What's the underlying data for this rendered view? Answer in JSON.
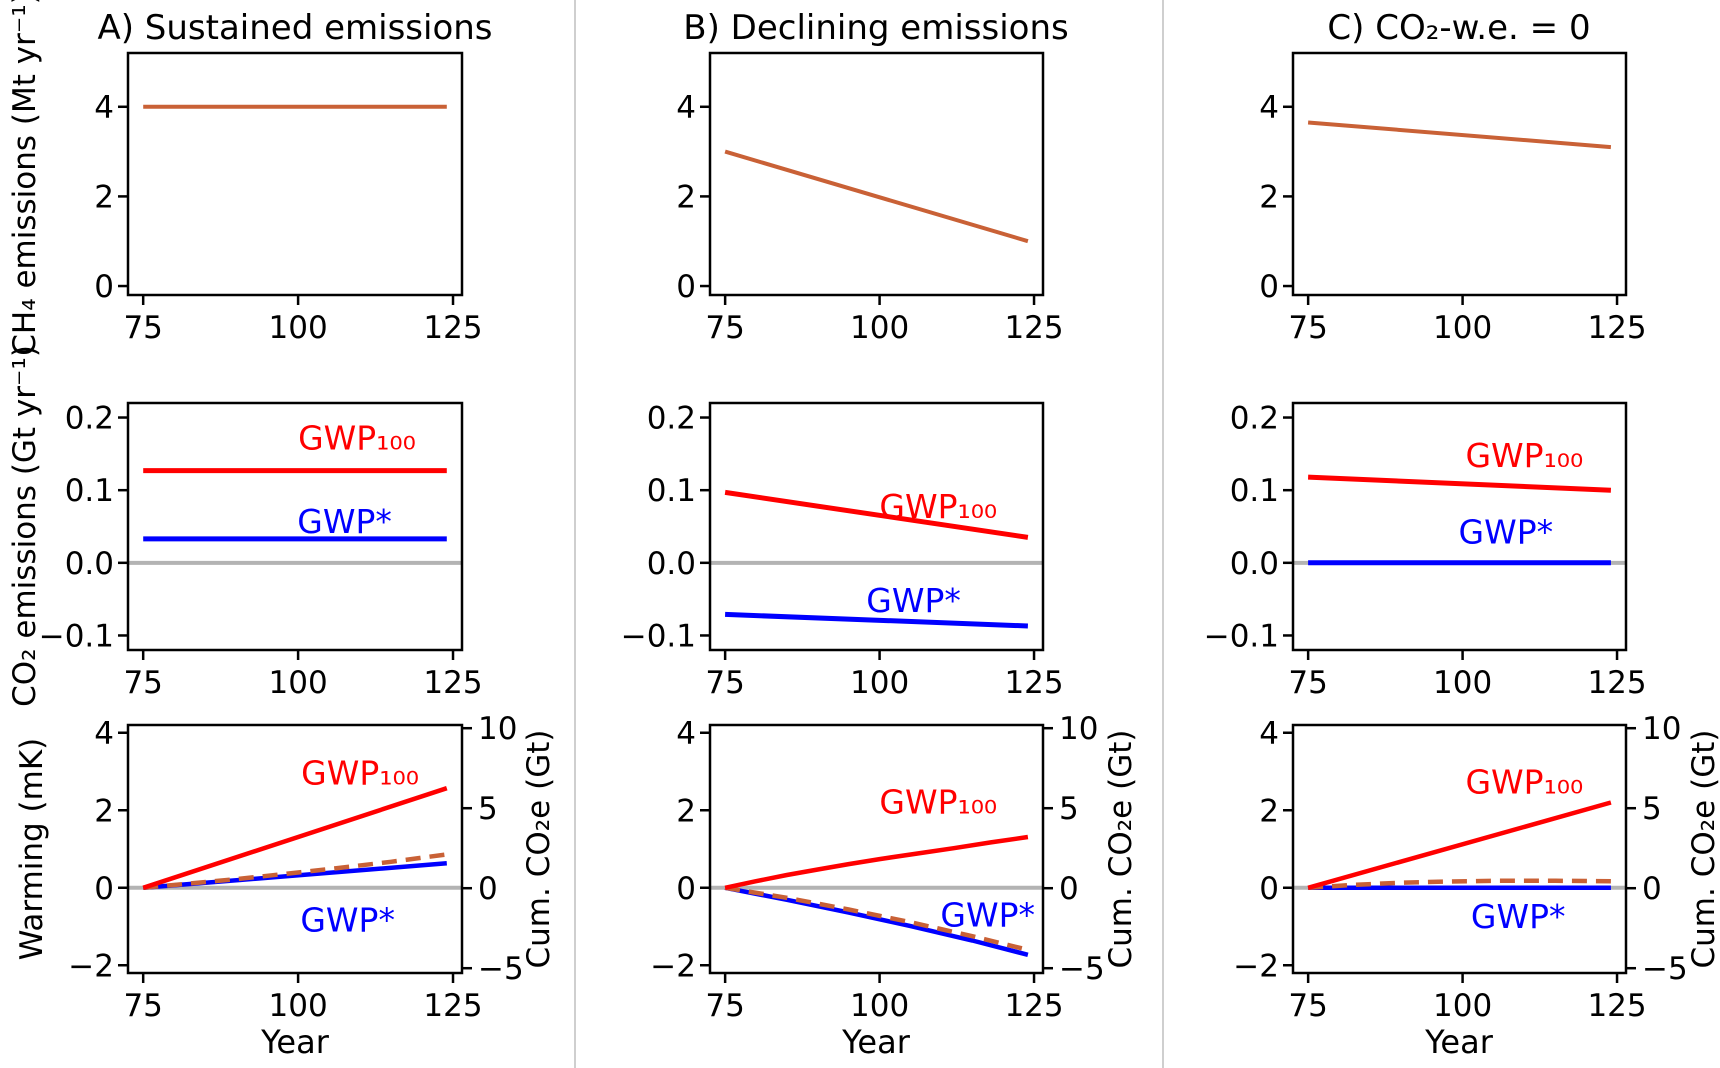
{
  "figure": {
    "background": "#ffffff",
    "divider_color": "#cfcfcf",
    "text_color": "#000000",
    "colors": {
      "methane_line": "#c96136",
      "gwp100_line": "#ff0000",
      "gwp_star_line": "#0000ff",
      "dashed_reference_line": "#c96136",
      "zero_line": "#b3b3b3"
    }
  },
  "columns": [
    {
      "id": "A",
      "title": "A) Sustained emissions"
    },
    {
      "id": "B",
      "title": "B) Declining emissions"
    },
    {
      "id": "C",
      "title": "C) CO₂-w.e. = 0"
    }
  ],
  "axes": {
    "xlabel": "Year",
    "xlim": [
      72.55,
      126.45
    ],
    "xticks": [
      {
        "v": 75,
        "label": "75"
      },
      {
        "v": 100,
        "label": "100"
      },
      {
        "v": 125,
        "label": "125"
      }
    ],
    "rows": [
      {
        "id": "ch4-emissions",
        "ylabel": "CH₄ emissions (Mt yr⁻¹)",
        "ylim": [
          -0.2,
          5.2
        ],
        "zero_line": false,
        "yticks": [
          {
            "v": 0,
            "label": "0"
          },
          {
            "v": 2,
            "label": "2"
          },
          {
            "v": 4,
            "label": "4"
          }
        ]
      },
      {
        "id": "co2-emissions",
        "ylabel": "CO₂ emissions (Gt yr⁻¹)",
        "ylim": [
          -0.12,
          0.22
        ],
        "zero_line": true,
        "yticks": [
          {
            "v": -0.1,
            "label": "−0.1"
          },
          {
            "v": 0,
            "label": "0.0"
          },
          {
            "v": 0.1,
            "label": "0.1"
          },
          {
            "v": 0.2,
            "label": "0.2"
          }
        ]
      },
      {
        "id": "warming",
        "ylabel": "Warming (mK)",
        "ylabel_right": "Cum. CO₂e (Gt)",
        "ylim": [
          -2.2,
          4.2
        ],
        "ylim_right": [
          -5.3,
          10.2
        ],
        "zero_line": true,
        "yticks": [
          {
            "v": -2,
            "label": "−2"
          },
          {
            "v": 0,
            "label": "0"
          },
          {
            "v": 2,
            "label": "2"
          },
          {
            "v": 4,
            "label": "4"
          }
        ],
        "yticks_right": [
          {
            "v": -5,
            "label": "−5"
          },
          {
            "v": 0,
            "label": "0"
          },
          {
            "v": 5,
            "label": "5"
          },
          {
            "v": 10,
            "label": "10"
          }
        ]
      }
    ]
  },
  "chart_data": [
    {
      "id": "A-ch4",
      "type": "line",
      "col": 0,
      "row": 0,
      "series": [
        {
          "name": "ch4-emissions",
          "color": "#c96136",
          "width": 4,
          "points": [
            [
              75,
              4.0
            ],
            [
              124,
              4.0
            ]
          ]
        }
      ],
      "labels": []
    },
    {
      "id": "B-ch4",
      "type": "line",
      "col": 1,
      "row": 0,
      "series": [
        {
          "name": "ch4-emissions",
          "color": "#c96136",
          "width": 4,
          "points": [
            [
              75,
              3.0
            ],
            [
              124,
              1.0
            ]
          ]
        }
      ],
      "labels": []
    },
    {
      "id": "C-ch4",
      "type": "line",
      "col": 2,
      "row": 0,
      "series": [
        {
          "name": "ch4-emissions",
          "color": "#c96136",
          "width": 4,
          "points": [
            [
              75,
              3.65
            ],
            [
              124,
              3.1
            ]
          ]
        }
      ],
      "labels": []
    },
    {
      "id": "A-co2",
      "type": "line",
      "col": 0,
      "row": 1,
      "series": [
        {
          "name": "gwp100",
          "color": "#ff0000",
          "width": 5,
          "points": [
            [
              75,
              0.127
            ],
            [
              124,
              0.127
            ]
          ]
        },
        {
          "name": "gwp-star",
          "color": "#0000ff",
          "width": 5,
          "points": [
            [
              75,
              0.033
            ],
            [
              124,
              0.033
            ]
          ]
        }
      ],
      "labels": [
        {
          "text": "GWP₁₀₀",
          "color": "#ff0000",
          "x": 109.5,
          "y": 0.171
        },
        {
          "text": "GWP*",
          "color": "#0000ff",
          "x": 107.5,
          "y": 0.056
        }
      ]
    },
    {
      "id": "B-co2",
      "type": "line",
      "col": 1,
      "row": 1,
      "series": [
        {
          "name": "gwp100",
          "color": "#ff0000",
          "width": 5,
          "points": [
            [
              75,
              0.097
            ],
            [
              124,
              0.035
            ]
          ]
        },
        {
          "name": "gwp-star",
          "color": "#0000ff",
          "width": 5,
          "points": [
            [
              75,
              -0.071
            ],
            [
              124,
              -0.087
            ]
          ]
        }
      ],
      "labels": [
        {
          "text": "GWP₁₀₀",
          "color": "#ff0000",
          "x": 109.5,
          "y": 0.0765
        },
        {
          "text": "GWP*",
          "color": "#0000ff",
          "x": 105.5,
          "y": -0.0525
        }
      ]
    },
    {
      "id": "C-co2",
      "type": "line",
      "col": 2,
      "row": 1,
      "series": [
        {
          "name": "gwp100",
          "color": "#ff0000",
          "width": 5,
          "points": [
            [
              75,
              0.118
            ],
            [
              124,
              0.1
            ]
          ]
        },
        {
          "name": "gwp-star",
          "color": "#0000ff",
          "width": 5,
          "points": [
            [
              75,
              0.0
            ],
            [
              124,
              0.0
            ]
          ]
        }
      ],
      "labels": [
        {
          "text": "GWP₁₀₀",
          "color": "#ff0000",
          "x": 110,
          "y": 0.147
        },
        {
          "text": "GWP*",
          "color": "#0000ff",
          "x": 107,
          "y": 0.042
        }
      ]
    },
    {
      "id": "A-warming",
      "type": "line",
      "col": 0,
      "row": 2,
      "series": [
        {
          "name": "gwp-star",
          "color": "#0000ff",
          "width": 4.5,
          "points": [
            [
              75,
              0
            ],
            [
              124,
              0.63
            ]
          ]
        },
        {
          "name": "co2-we-dashed",
          "color": "#c96136",
          "width": 4.5,
          "dash": "15 9",
          "points": [
            [
              75,
              0
            ],
            [
              90,
              0.22
            ],
            [
              105,
              0.48
            ],
            [
              115,
              0.67
            ],
            [
              124,
              0.86
            ]
          ]
        },
        {
          "name": "gwp100",
          "color": "#ff0000",
          "width": 4.5,
          "points": [
            [
              75,
              0
            ],
            [
              124,
              2.57
            ]
          ]
        }
      ],
      "labels": [
        {
          "text": "GWP₁₀₀",
          "color": "#ff0000",
          "x": 110,
          "y": 2.95
        },
        {
          "text": "GWP*",
          "color": "#0000ff",
          "x": 108,
          "y": -0.85
        }
      ]
    },
    {
      "id": "B-warming",
      "type": "line",
      "col": 1,
      "row": 2,
      "series": [
        {
          "name": "gwp-star",
          "color": "#0000ff",
          "width": 4.5,
          "points": [
            [
              75,
              0
            ],
            [
              85,
              -0.31
            ],
            [
              95,
              -0.64
            ],
            [
              105,
              -0.99
            ],
            [
              115,
              -1.36
            ],
            [
              124,
              -1.73
            ]
          ]
        },
        {
          "name": "co2-we-dashed",
          "color": "#c96136",
          "width": 4.5,
          "dash": "15 9",
          "points": [
            [
              75,
              0
            ],
            [
              85,
              -0.26
            ],
            [
              95,
              -0.56
            ],
            [
              105,
              -0.89
            ],
            [
              115,
              -1.25
            ],
            [
              124,
              -1.6
            ]
          ]
        },
        {
          "name": "gwp100",
          "color": "#ff0000",
          "width": 4.5,
          "points": [
            [
              75,
              0
            ],
            [
              80,
              0.17
            ],
            [
              85,
              0.33
            ],
            [
              90,
              0.47
            ],
            [
              95,
              0.61
            ],
            [
              100,
              0.74
            ],
            [
              106,
              0.88
            ],
            [
              112,
              1.02
            ],
            [
              118,
              1.17
            ],
            [
              124,
              1.31
            ]
          ]
        }
      ],
      "labels": [
        {
          "text": "GWP₁₀₀",
          "color": "#ff0000",
          "x": 109.5,
          "y": 2.2
        },
        {
          "text": "GWP*",
          "color": "#0000ff",
          "x": 117.5,
          "y": -0.72
        }
      ]
    },
    {
      "id": "C-warming",
      "type": "line",
      "col": 2,
      "row": 2,
      "series": [
        {
          "name": "gwp-star",
          "color": "#0000ff",
          "width": 4.5,
          "points": [
            [
              75,
              0
            ],
            [
              124,
              0
            ]
          ]
        },
        {
          "name": "co2-we-dashed",
          "color": "#c96136",
          "width": 4.5,
          "dash": "15 9",
          "points": [
            [
              75,
              0
            ],
            [
              82,
              0.07
            ],
            [
              90,
              0.13
            ],
            [
              98,
              0.16
            ],
            [
              106,
              0.18
            ],
            [
              115,
              0.18
            ],
            [
              124,
              0.17
            ]
          ]
        },
        {
          "name": "gwp100",
          "color": "#ff0000",
          "width": 4.5,
          "points": [
            [
              75,
              0
            ],
            [
              124,
              2.2
            ]
          ]
        }
      ],
      "labels": [
        {
          "text": "GWP₁₀₀",
          "color": "#ff0000",
          "x": 110,
          "y": 2.72
        },
        {
          "text": "GWP*",
          "color": "#0000ff",
          "x": 109,
          "y": -0.76
        }
      ]
    }
  ]
}
